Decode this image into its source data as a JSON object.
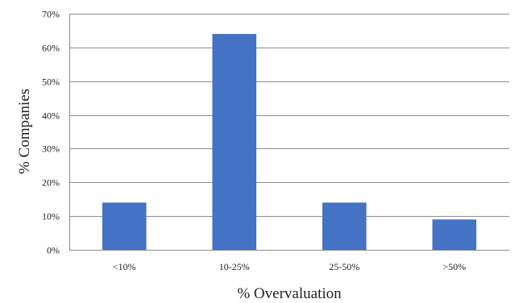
{
  "chart_data": {
    "type": "bar",
    "title": "",
    "xlabel": "% Overvaluation",
    "ylabel": "% Companies",
    "categories": [
      "<10%",
      "10-25%",
      "25-50%",
      ">50%"
    ],
    "values": [
      14,
      64,
      14,
      9
    ],
    "ylim": [
      0,
      70
    ],
    "y_ticks": [
      0,
      10,
      20,
      30,
      40,
      50,
      60,
      70
    ],
    "y_tick_format": "percent",
    "grid": true,
    "legend": "none",
    "bar_color": "#4472c4"
  }
}
